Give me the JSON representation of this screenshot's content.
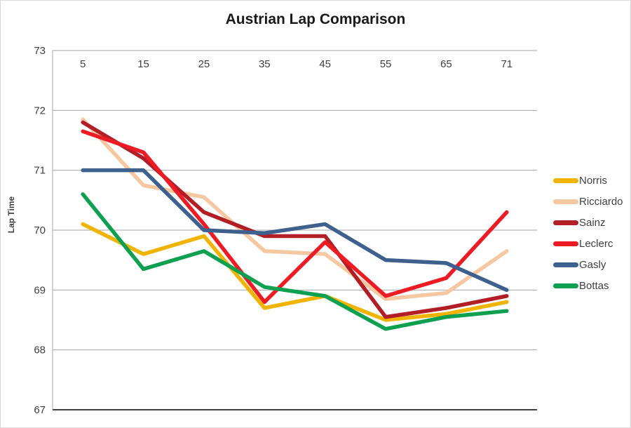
{
  "chart_data": {
    "type": "line",
    "title": "Austrian Lap Comparison",
    "ylabel": "Lap Time",
    "xlabel": "",
    "x": [
      5,
      15,
      25,
      35,
      45,
      55,
      65,
      71
    ],
    "x_tick_labels": [
      "5",
      "15",
      "25",
      "35",
      "45",
      "55",
      "65",
      "71"
    ],
    "yticks": [
      73,
      72,
      71,
      70,
      69,
      68,
      67
    ],
    "ylim": [
      67,
      73
    ],
    "grid": true,
    "legend_position": "right",
    "grid_color": "#a6a6a6",
    "baseline_color": "#404040",
    "text_color": "#3f3f3f",
    "title_color": "#1a1a1a",
    "series": [
      {
        "name": "Norris",
        "color": "#f0b400",
        "values": [
          70.1,
          69.6,
          69.9,
          68.7,
          68.9,
          68.5,
          68.6,
          68.8
        ]
      },
      {
        "name": "Ricciardo",
        "color": "#f5c8a2",
        "values": [
          71.85,
          70.75,
          70.55,
          69.65,
          69.6,
          68.85,
          68.95,
          69.65
        ]
      },
      {
        "name": "Sainz",
        "color": "#b11e26",
        "values": [
          71.8,
          71.2,
          70.3,
          69.9,
          69.9,
          68.55,
          68.7,
          68.9
        ]
      },
      {
        "name": "Leclerc",
        "color": "#ed1b24",
        "values": [
          71.65,
          71.3,
          70.1,
          68.8,
          69.8,
          68.9,
          69.2,
          70.3
        ]
      },
      {
        "name": "Gasly",
        "color": "#3e608d",
        "values": [
          71.0,
          71.0,
          70.0,
          69.95,
          70.1,
          69.5,
          69.45,
          69.0
        ]
      },
      {
        "name": "Bottas",
        "color": "#0ea051",
        "values": [
          70.6,
          69.35,
          69.65,
          69.05,
          68.9,
          68.35,
          68.55,
          68.65
        ]
      }
    ]
  }
}
